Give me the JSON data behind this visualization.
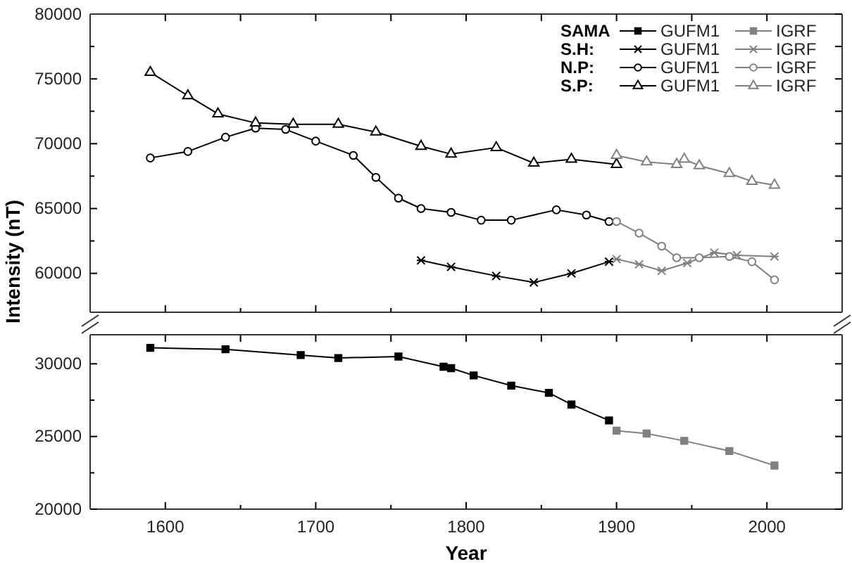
{
  "chart_data": [
    {
      "type": "line",
      "ylabel": "Intensity (nT)",
      "xlim": [
        1550,
        2050
      ],
      "xticks": [
        1600,
        {
          "value": 1650,
          "label": null
        },
        1700,
        {
          "value": 1750,
          "label": null
        },
        1800,
        {
          "value": 1850,
          "label": null
        },
        1900,
        {
          "value": 1950,
          "label": null
        },
        2000
      ],
      "ylim": [
        57000,
        80000
      ],
      "yticks": [
        60000,
        {
          "value": 62500,
          "label": null
        },
        65000,
        {
          "value": 67500,
          "label": null
        },
        70000,
        {
          "value": 72500,
          "label": null
        },
        75000,
        {
          "value": 77500,
          "label": null
        },
        80000
      ],
      "tick_labels": "y",
      "legend": "top right",
      "annotations": [
        "S.H:",
        "N.P:",
        "S.P:"
      ],
      "series": [
        {
          "name": "GUFM1",
          "color": "#000000",
          "marker": "cross",
          "x": [
            1770,
            1790,
            1820,
            1845,
            1870,
            1895
          ],
          "values": [
            61000,
            60500,
            59800,
            59300,
            60000,
            60900
          ]
        },
        {
          "name": "IGRF",
          "color": "#808080",
          "marker": "cross",
          "x": [
            1900,
            1915,
            1930,
            1947,
            1965,
            1980,
            2005
          ],
          "values": [
            61100,
            60700,
            60200,
            60800,
            61600,
            61400,
            61300
          ]
        },
        {
          "name": "GUFM1",
          "color": "#000000",
          "marker": "circle",
          "x": [
            1590,
            1615,
            1640,
            1660,
            1680,
            1700,
            1725,
            1740,
            1755,
            1770,
            1790,
            1810,
            1830,
            1860,
            1880,
            1895
          ],
          "values": [
            68900,
            69400,
            70500,
            71200,
            71100,
            70200,
            69100,
            67400,
            65800,
            65000,
            64700,
            64100,
            64100,
            64900,
            64500,
            64000
          ]
        },
        {
          "name": "IGRF",
          "color": "#808080",
          "marker": "circle",
          "x": [
            1900,
            1915,
            1930,
            1940,
            1955,
            1975,
            1990,
            2005
          ],
          "values": [
            64000,
            63100,
            62100,
            61200,
            61200,
            61300,
            60900,
            59500
          ]
        },
        {
          "name": "GUFM1",
          "color": "#000000",
          "marker": "triangle",
          "x": [
            1590,
            1615,
            1635,
            1660,
            1685,
            1715,
            1740,
            1770,
            1790,
            1820,
            1845,
            1870,
            1900
          ],
          "values": [
            75500,
            73700,
            72300,
            71600,
            71500,
            71500,
            70900,
            69800,
            69200,
            69700,
            68500,
            68800,
            68400
          ]
        },
        {
          "name": "IGRF",
          "color": "#808080",
          "marker": "triangle",
          "x": [
            1900,
            1920,
            1940,
            1945,
            1955,
            1975,
            1990,
            2005
          ],
          "values": [
            69100,
            68600,
            68400,
            68800,
            68300,
            67700,
            67100,
            66800
          ]
        }
      ]
    },
    {
      "type": "line",
      "xlabel": "Year",
      "xlim": [
        1550,
        2050
      ],
      "xticks": [
        1600,
        {
          "value": 1650,
          "label": null
        },
        1700,
        {
          "value": 1750,
          "label": null
        },
        1800,
        {
          "value": 1850,
          "label": null
        },
        1900,
        {
          "value": 1950,
          "label": null
        },
        2000
      ],
      "ylim": [
        20000,
        32000
      ],
      "yticks": [
        20000,
        {
          "value": 22500,
          "label": null
        },
        25000,
        {
          "value": 27500,
          "label": null
        },
        30000
      ],
      "legend": "top right",
      "annotations": [
        "SAMA"
      ],
      "series": [
        {
          "name": "GUFM1",
          "color": "#000000",
          "marker": "square",
          "x": [
            1590,
            1640,
            1690,
            1715,
            1755,
            1785,
            1790,
            1805,
            1830,
            1855,
            1870,
            1895
          ],
          "values": [
            31100,
            31000,
            30600,
            30400,
            30500,
            29800,
            29700,
            29200,
            28500,
            28000,
            27200,
            26100
          ]
        },
        {
          "name": "IGRF",
          "color": "#808080",
          "marker": "square",
          "x": [
            1900,
            1920,
            1945,
            1975,
            2005
          ],
          "values": [
            25400,
            25200,
            24700,
            24000,
            23000
          ]
        }
      ]
    }
  ]
}
